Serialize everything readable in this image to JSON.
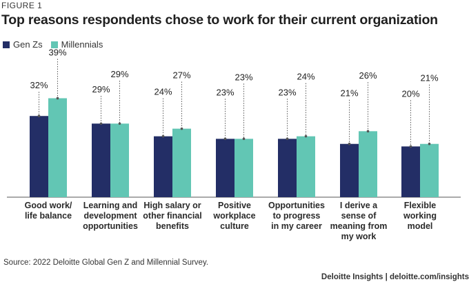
{
  "figure_label": "FIGURE 1",
  "title": "Top reasons respondents chose to work for their current organization",
  "source": "Source: 2022 Deloitte Global Gen Z and Millennial Survey.",
  "footer": "Deloitte Insights | deloitte.com/insights",
  "colors": {
    "genz": "#232e66",
    "millennials": "#62c6b4",
    "axis": "#777777",
    "leader": "#555555"
  },
  "chart_data": {
    "type": "bar",
    "categories": [
      [
        "Good work/",
        "life balance"
      ],
      [
        "Learning and",
        "development",
        "opportunities"
      ],
      [
        "High salary or",
        "other financial",
        "benefits"
      ],
      [
        "Positive",
        "workplace",
        "culture"
      ],
      [
        "Opportunities",
        "to progress",
        "in my career"
      ],
      [
        "I derive a",
        "sense of",
        "meaning from",
        "my work"
      ],
      [
        "Flexible",
        "working",
        "model"
      ]
    ],
    "series": [
      {
        "name": "Gen Zs",
        "values": [
          32,
          29,
          24,
          23,
          23,
          21,
          20
        ],
        "color": "#232e66"
      },
      {
        "name": "Millennials",
        "values": [
          39,
          29,
          27,
          23,
          24,
          26,
          21
        ],
        "color": "#62c6b4"
      }
    ],
    "value_format": "{v}%",
    "legend_position": "top-left",
    "grid": false
  }
}
